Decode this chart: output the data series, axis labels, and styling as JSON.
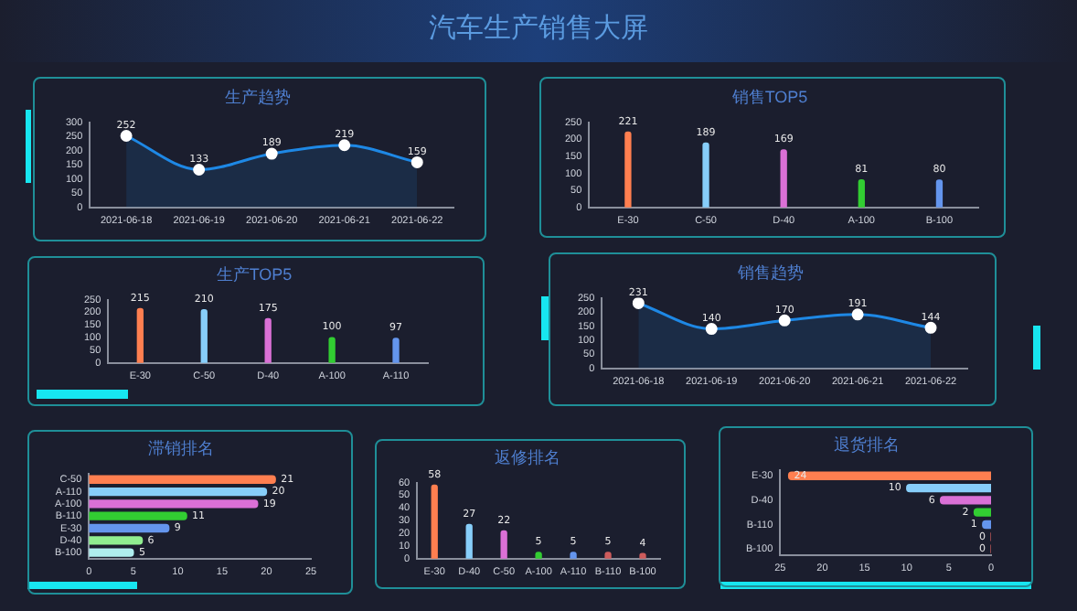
{
  "chart_data": [
    {
      "type": "other",
      "title": "汽车生产销售大屏"
    },
    {
      "type": "area",
      "title": "生产趋势",
      "categories": [
        "2021-06-18",
        "2021-06-19",
        "2021-06-20",
        "2021-06-21",
        "2021-06-22"
      ],
      "series": [
        {
          "color": "#1e88e5",
          "values": [
            252,
            133,
            189,
            219,
            159
          ]
        }
      ],
      "ylim": [
        0,
        300
      ],
      "yticks": [
        0,
        50,
        100,
        150,
        200,
        250,
        300
      ],
      "marker": "circle",
      "data_labels": true
    },
    {
      "type": "bar",
      "title": "销售TOP5",
      "categories": [
        "E-30",
        "C-50",
        "D-40",
        "A-100",
        "B-100"
      ],
      "values": [
        221,
        189,
        169,
        81,
        80
      ],
      "colors": [
        "#ff7f50",
        "#87cefa",
        "#da70d6",
        "#32cd32",
        "#6495ed"
      ],
      "ylim": [
        0,
        250
      ],
      "yticks": [
        0,
        50,
        100,
        150,
        200,
        250
      ],
      "data_labels": true
    },
    {
      "type": "bar",
      "title": "生产TOP5",
      "categories": [
        "E-30",
        "C-50",
        "D-40",
        "A-100",
        "A-110"
      ],
      "values": [
        215,
        210,
        175,
        100,
        97
      ],
      "colors": [
        "#ff7f50",
        "#87cefa",
        "#da70d6",
        "#32cd32",
        "#6495ed"
      ],
      "ylim": [
        0,
        250
      ],
      "yticks": [
        0,
        50,
        100,
        150,
        200,
        250
      ],
      "data_labels": true
    },
    {
      "type": "area",
      "title": "销售趋势",
      "categories": [
        "2021-06-18",
        "2021-06-19",
        "2021-06-20",
        "2021-06-21",
        "2021-06-22"
      ],
      "series": [
        {
          "color": "#1e88e5",
          "values": [
            231,
            140,
            170,
            191,
            144
          ]
        }
      ],
      "ylim": [
        0,
        250
      ],
      "yticks": [
        0,
        50,
        100,
        150,
        200,
        250
      ],
      "marker": "circle",
      "data_labels": true
    },
    {
      "type": "bar",
      "orientation": "horizontal",
      "title": "滞销排名",
      "categories": [
        "C-50",
        "A-110",
        "A-100",
        "B-110",
        "E-30",
        "D-40",
        "B-100"
      ],
      "values": [
        21,
        20,
        19,
        11,
        9,
        6,
        5
      ],
      "colors": [
        "#ff7f50",
        "#87cefa",
        "#da70d6",
        "#32cd32",
        "#6495ed",
        "#90ee90",
        "#afeeee"
      ],
      "xlim": [
        0,
        25
      ],
      "xticks": [
        0,
        5,
        10,
        15,
        20,
        25
      ],
      "data_labels": true
    },
    {
      "type": "bar",
      "title": "返修排名",
      "categories": [
        "E-30",
        "D-40",
        "C-50",
        "A-100",
        "A-110",
        "B-110",
        "B-100"
      ],
      "values": [
        58,
        27,
        22,
        5,
        5,
        5,
        4
      ],
      "colors": [
        "#ff7f50",
        "#87cefa",
        "#da70d6",
        "#32cd32",
        "#6495ed",
        "#cd5c5c",
        "#cd5c5c"
      ],
      "ylim": [
        0,
        60
      ],
      "yticks": [
        0,
        10,
        20,
        30,
        40,
        50,
        60
      ],
      "data_labels": true
    },
    {
      "type": "bar",
      "orientation": "horizontal",
      "title": "退货排名",
      "categories": [
        "E-30",
        null,
        "D-40",
        null,
        "B-110",
        null,
        "B-100"
      ],
      "values": [
        24,
        10,
        6,
        2,
        1,
        0,
        0
      ],
      "colors": [
        "#ff7f50",
        "#87cefa",
        "#da70d6",
        "#32cd32",
        "#6495ed",
        "#cd5c5c",
        "#cd5c5c"
      ],
      "xlim": [
        25,
        0
      ],
      "xticks": [
        25,
        20,
        15,
        10,
        5,
        0
      ],
      "data_labels": true
    }
  ]
}
